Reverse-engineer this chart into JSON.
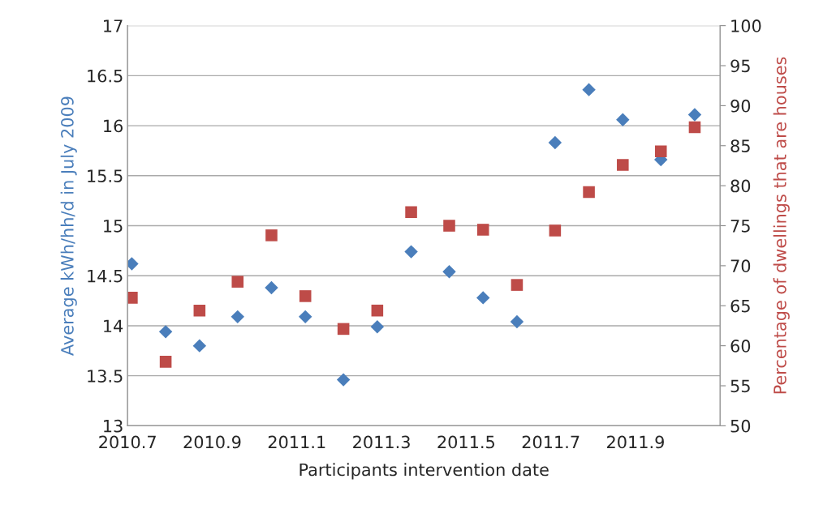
{
  "chart_data": {
    "type": "scatter",
    "xlabel": "Participants intervention date",
    "ylabel": "Average kWh/hh/d in July 2009",
    "y2label": "Percentage of dwellings that are houses",
    "x": [
      2010.71,
      2010.79,
      2010.87,
      2010.96,
      2011.04,
      2011.12,
      2011.21,
      2011.29,
      2011.37,
      2011.46,
      2011.54,
      2011.62,
      2011.71,
      2011.79,
      2011.87,
      2011.96,
      2012.04
    ],
    "series": [
      {
        "color": "#4a7ebb",
        "marker": "diamond",
        "values": [
          14.62,
          13.94,
          13.8,
          14.09,
          14.38,
          14.09,
          13.46,
          13.99,
          14.74,
          14.54,
          14.28,
          14.04,
          15.83,
          16.36,
          16.06,
          15.66,
          16.11
        ]
      },
      {
        "color": "#be4b48",
        "marker": "square",
        "axis": "y2",
        "values": [
          66.0,
          58.0,
          64.4,
          68.0,
          73.8,
          66.2,
          62.1,
          64.4,
          76.7,
          75.0,
          74.5,
          67.6,
          74.4,
          79.2,
          82.6,
          84.3,
          87.3
        ]
      }
    ],
    "xlim": [
      2010.7,
      2012.1
    ],
    "xticks": [
      2010.7,
      2010.9,
      2011.1,
      2011.3,
      2011.5,
      2011.7,
      2011.9,
      {
        "value": 2012.1,
        "label": null
      }
    ],
    "ylim": [
      13,
      17
    ],
    "yticks": [
      13,
      13.5,
      14,
      14.5,
      15,
      15.5,
      16,
      16.5,
      17
    ],
    "y2lim": [
      50,
      100
    ],
    "y2ticks": [
      50,
      55,
      60,
      65,
      70,
      75,
      80,
      85,
      90,
      95,
      100
    ],
    "grid": "y"
  }
}
